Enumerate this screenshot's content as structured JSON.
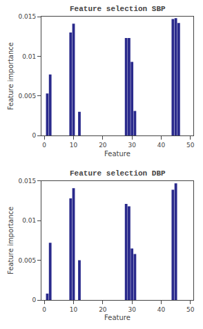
{
  "chart_data": [
    {
      "type": "bar",
      "title": "Feature selection SBP",
      "x": [
        1,
        2,
        9,
        10,
        12,
        28,
        29,
        30,
        31,
        44,
        45,
        46
      ],
      "values": [
        0.0053,
        0.0077,
        0.013,
        0.0141,
        0.003,
        0.0123,
        0.0123,
        0.0093,
        0.0031,
        0.0147,
        0.0148,
        0.0142
      ],
      "color": "#2a2a8c",
      "xlabel": "Feature",
      "ylabel": "Feature importance",
      "xlim": [
        -1,
        51
      ],
      "ylim": [
        0,
        0.015
      ],
      "xticks": [
        0,
        10,
        20,
        30,
        40,
        50
      ],
      "yticks": [
        0,
        0.005,
        0.01,
        0.015
      ],
      "grid": false
    },
    {
      "type": "bar",
      "title": "Feature selection DBP",
      "x": [
        1,
        2,
        9,
        10,
        12,
        28,
        29,
        30,
        31,
        44,
        45
      ],
      "values": [
        0.0008,
        0.0072,
        0.0128,
        0.0141,
        0.005,
        0.0121,
        0.0118,
        0.0065,
        0.0058,
        0.0139,
        0.0147
      ],
      "color": "#2a2a8c",
      "xlabel": "Feature",
      "ylabel": "Feature importance",
      "xlim": [
        -1,
        51
      ],
      "ylim": [
        0,
        0.015
      ],
      "xticks": [
        0,
        10,
        20,
        30,
        40,
        50
      ],
      "yticks": [
        0,
        0.005,
        0.01,
        0.015
      ],
      "grid": false
    }
  ]
}
